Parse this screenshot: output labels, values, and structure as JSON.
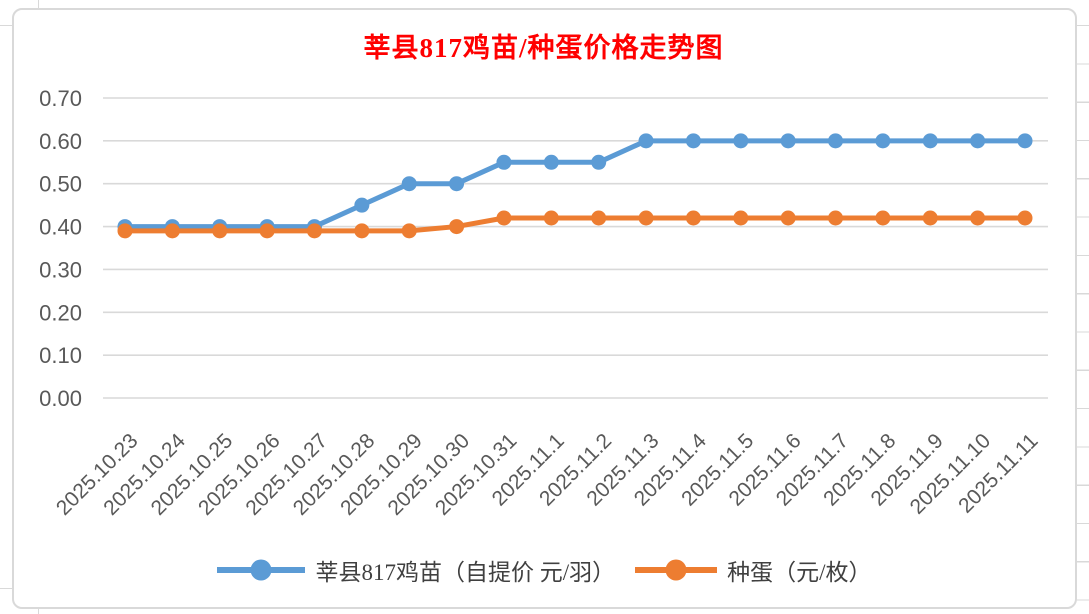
{
  "chart_data": {
    "type": "line",
    "title": "莘县817鸡苗/种蛋价格走势图",
    "title_color": "#FF0000",
    "categories": [
      "2025.10.23",
      "2025.10.24",
      "2025.10.25",
      "2025.10.26",
      "2025.10.27",
      "2025.10.28",
      "2025.10.29",
      "2025.10.30",
      "2025.10.31",
      "2025.11.1",
      "2025.11.2",
      "2025.11.3",
      "2025.11.4",
      "2025.11.5",
      "2025.11.6",
      "2025.11.7",
      "2025.11.8",
      "2025.11.9",
      "2025.11.10",
      "2025.11.11"
    ],
    "series": [
      {
        "name": "莘县817鸡苗（自提价 元/羽）",
        "color": "#5B9BD5",
        "values": [
          0.4,
          0.4,
          0.4,
          0.4,
          0.4,
          0.45,
          0.5,
          0.5,
          0.55,
          0.55,
          0.55,
          0.6,
          0.6,
          0.6,
          0.6,
          0.6,
          0.6,
          0.6,
          0.6,
          0.6
        ]
      },
      {
        "name": "种蛋（元/枚）",
        "color": "#ED7D31",
        "values": [
          0.39,
          0.39,
          0.39,
          0.39,
          0.39,
          0.39,
          0.39,
          0.4,
          0.42,
          0.42,
          0.42,
          0.42,
          0.42,
          0.42,
          0.42,
          0.42,
          0.42,
          0.42,
          0.42,
          0.42
        ]
      }
    ],
    "xlabel": "",
    "ylabel": "",
    "ylim": [
      0.0,
      0.7
    ],
    "ytick_step": 0.1,
    "ytick_labels": [
      "0.00",
      "0.10",
      "0.20",
      "0.30",
      "0.40",
      "0.50",
      "0.60",
      "0.70"
    ],
    "grid": true,
    "gridline_color": "#D9D9D9",
    "axis_label_color": "#595959",
    "legend_position": "bottom"
  }
}
